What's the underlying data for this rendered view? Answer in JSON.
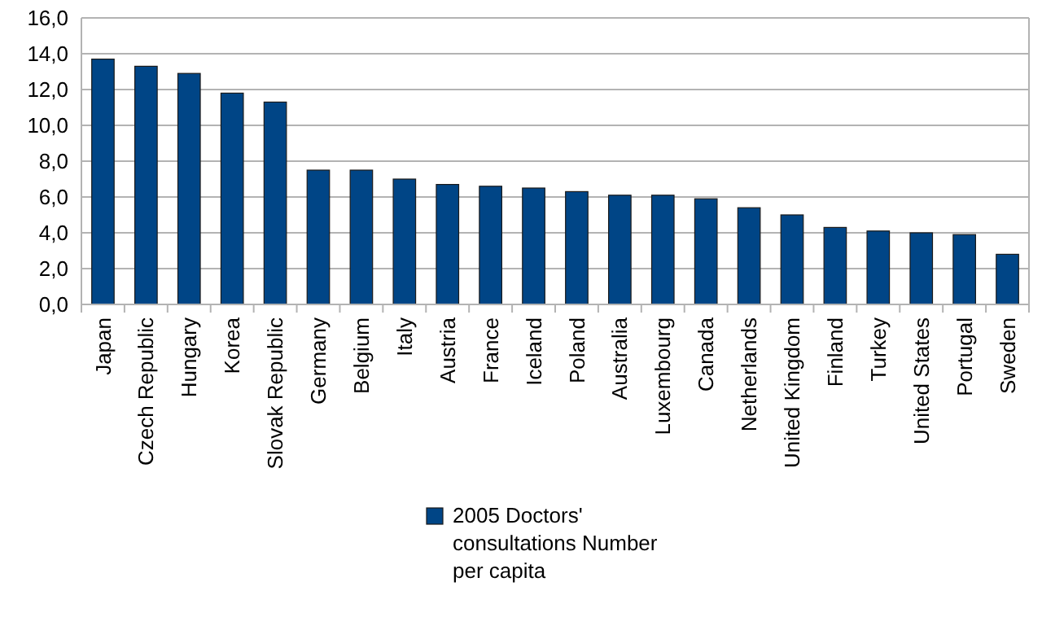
{
  "chart_data": {
    "type": "bar",
    "categories": [
      "Japan",
      "Czech Republic",
      "Hungary",
      "Korea",
      "Slovak Republic",
      "Germany",
      "Belgium",
      "Italy",
      "Austria",
      "France",
      "Iceland",
      "Poland",
      "Australia",
      "Luxembourg",
      "Canada",
      "Netherlands",
      "United Kingdom",
      "Finland",
      "Turkey",
      "United States",
      "Portugal",
      "Sweden"
    ],
    "series": [
      {
        "name": "2005 Doctors' consultations Number per capita",
        "color": "#004586",
        "values": [
          13.7,
          13.3,
          12.9,
          11.8,
          11.3,
          7.5,
          7.5,
          7.0,
          6.7,
          6.6,
          6.5,
          6.3,
          6.1,
          6.1,
          5.9,
          5.4,
          5.0,
          4.3,
          4.1,
          4.0,
          3.9,
          2.8
        ]
      }
    ],
    "ylim": [
      0,
      16
    ],
    "yticks": [
      {
        "value": 0,
        "label": "0,0"
      },
      {
        "value": 2,
        "label": "2,0"
      },
      {
        "value": 4,
        "label": "4,0"
      },
      {
        "value": 6,
        "label": "6,0"
      },
      {
        "value": 8,
        "label": "8,0"
      },
      {
        "value": 10,
        "label": "10,0"
      },
      {
        "value": 12,
        "label": "12,0"
      },
      {
        "value": 14,
        "label": "14,0"
      },
      {
        "value": 16,
        "label": "16,0"
      }
    ],
    "grid": "y",
    "legend": "bottom"
  }
}
